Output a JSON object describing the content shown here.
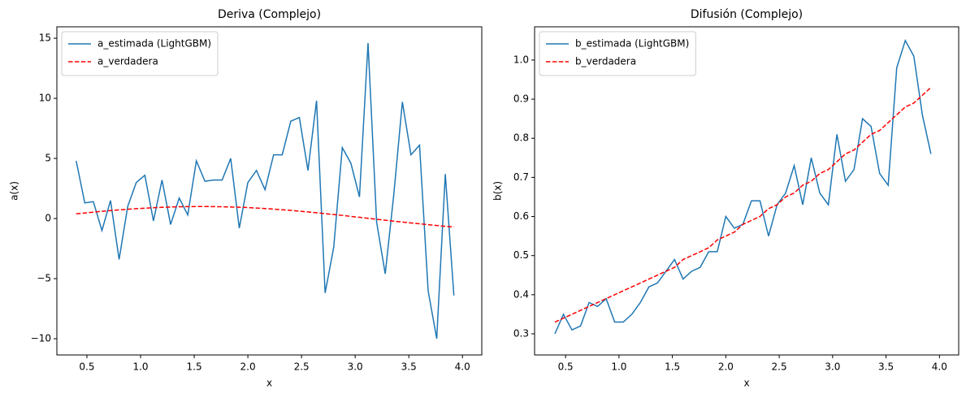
{
  "chart_data": [
    {
      "type": "line",
      "title": "Deriva (Complejo)",
      "xlabel": "x",
      "ylabel": "a(x)",
      "x": [
        0.4,
        0.48,
        0.56,
        0.64,
        0.72,
        0.8,
        0.88,
        0.96,
        1.04,
        1.12,
        1.2,
        1.28,
        1.36,
        1.44,
        1.52,
        1.6,
        1.68,
        1.76,
        1.84,
        1.92,
        2.0,
        2.08,
        2.16,
        2.24,
        2.32,
        2.4,
        2.48,
        2.56,
        2.64,
        2.72,
        2.8,
        2.88,
        2.96,
        3.04,
        3.12,
        3.2,
        3.28,
        3.36,
        3.44,
        3.52,
        3.6,
        3.68,
        3.76,
        3.84,
        3.92
      ],
      "series": [
        {
          "name": "a_estimada (LightGBM)",
          "color": "#1f77b4",
          "linestyle": "solid",
          "values": [
            4.8,
            1.3,
            1.4,
            -1.0,
            1.5,
            -3.4,
            1.0,
            3.0,
            3.6,
            -0.2,
            3.2,
            -0.5,
            1.7,
            0.3,
            4.8,
            3.1,
            3.2,
            3.2,
            5.0,
            -0.8,
            3.0,
            4.0,
            2.4,
            5.3,
            5.3,
            8.1,
            8.4,
            4.0,
            9.8,
            -6.2,
            -2.4,
            5.9,
            4.6,
            1.8,
            14.6,
            -0.3,
            -4.6,
            2.0,
            9.7,
            5.3,
            6.1,
            -6.0,
            -10.0,
            3.7,
            -6.4
          ]
        },
        {
          "name": "a_verdadera",
          "color": "#ff0000",
          "linestyle": "dashed",
          "values": [
            0.39,
            0.46,
            0.53,
            0.6,
            0.66,
            0.72,
            0.77,
            0.82,
            0.86,
            0.9,
            0.93,
            0.96,
            0.98,
            0.99,
            1.0,
            1.0,
            0.99,
            0.98,
            0.96,
            0.94,
            0.91,
            0.87,
            0.83,
            0.78,
            0.73,
            0.68,
            0.61,
            0.55,
            0.48,
            0.41,
            0.33,
            0.26,
            0.18,
            0.1,
            0.02,
            -0.06,
            -0.14,
            -0.22,
            -0.29,
            -0.37,
            -0.44,
            -0.51,
            -0.58,
            -0.65,
            -0.7
          ]
        }
      ],
      "xlim": [
        0.22,
        4.18
      ],
      "ylim": [
        -11.35,
        15.95
      ],
      "xticks": [
        0.5,
        {
          "value": 1.0,
          "label": "1.0"
        },
        1.5,
        {
          "value": 2.0,
          "label": "2.0"
        },
        2.5,
        {
          "value": 3.0,
          "label": "3.0"
        },
        3.5,
        {
          "value": 4.0,
          "label": "4.0"
        }
      ],
      "yticks": [
        {
          "value": -10,
          "label": "−10"
        },
        {
          "value": -5,
          "label": "−5"
        },
        0,
        5,
        10,
        15
      ],
      "grid": false,
      "legend": "upper-left"
    },
    {
      "type": "line",
      "title": "Difusión (Complejo)",
      "xlabel": "x",
      "ylabel": "b(x)",
      "x": [
        0.4,
        0.48,
        0.56,
        0.64,
        0.72,
        0.8,
        0.88,
        0.96,
        1.04,
        1.12,
        1.2,
        1.28,
        1.36,
        1.44,
        1.52,
        1.6,
        1.68,
        1.76,
        1.84,
        1.92,
        2.0,
        2.08,
        2.16,
        2.24,
        2.32,
        2.4,
        2.48,
        2.56,
        2.64,
        2.72,
        2.8,
        2.88,
        2.96,
        3.04,
        3.12,
        3.2,
        3.28,
        3.36,
        3.44,
        3.52,
        3.6,
        3.68,
        3.76,
        3.84,
        3.92
      ],
      "series": [
        {
          "name": "b_estimada (LightGBM)",
          "color": "#1f77b4",
          "linestyle": "solid",
          "values": [
            0.3,
            0.35,
            0.31,
            0.32,
            0.38,
            0.37,
            0.39,
            0.33,
            0.33,
            0.35,
            0.38,
            0.42,
            0.43,
            0.46,
            0.49,
            0.44,
            0.46,
            0.47,
            0.51,
            0.51,
            0.6,
            0.57,
            0.58,
            0.64,
            0.64,
            0.55,
            0.63,
            0.66,
            0.73,
            0.63,
            0.75,
            0.66,
            0.63,
            0.81,
            0.69,
            0.72,
            0.85,
            0.83,
            0.71,
            0.68,
            0.98,
            1.05,
            1.01,
            0.86,
            0.76
          ]
        },
        {
          "name": "b_verdadera",
          "color": "#ff0000",
          "linestyle": "dashed",
          "values": [
            0.33,
            0.34,
            0.35,
            0.36,
            0.37,
            0.38,
            0.39,
            0.4,
            0.41,
            0.42,
            0.43,
            0.44,
            0.45,
            0.46,
            0.47,
            0.49,
            0.5,
            0.51,
            0.52,
            0.54,
            0.55,
            0.56,
            0.58,
            0.59,
            0.6,
            0.62,
            0.63,
            0.65,
            0.66,
            0.68,
            0.69,
            0.71,
            0.72,
            0.74,
            0.76,
            0.77,
            0.79,
            0.81,
            0.82,
            0.84,
            0.86,
            0.88,
            0.89,
            0.91,
            0.93
          ]
        }
      ],
      "xlim": [
        0.21,
        4.18
      ],
      "ylim": [
        0.246,
        1.085
      ],
      "xticks": [
        0.5,
        {
          "value": 1.0,
          "label": "1.0"
        },
        1.5,
        {
          "value": 2.0,
          "label": "2.0"
        },
        2.5,
        {
          "value": 3.0,
          "label": "3.0"
        },
        3.5,
        {
          "value": 4.0,
          "label": "4.0"
        }
      ],
      "yticks": [
        0.3,
        0.4,
        0.5,
        0.6,
        0.7,
        0.8,
        0.9,
        {
          "value": 1.0,
          "label": "1.0"
        }
      ],
      "grid": false,
      "legend": "upper-left"
    }
  ]
}
